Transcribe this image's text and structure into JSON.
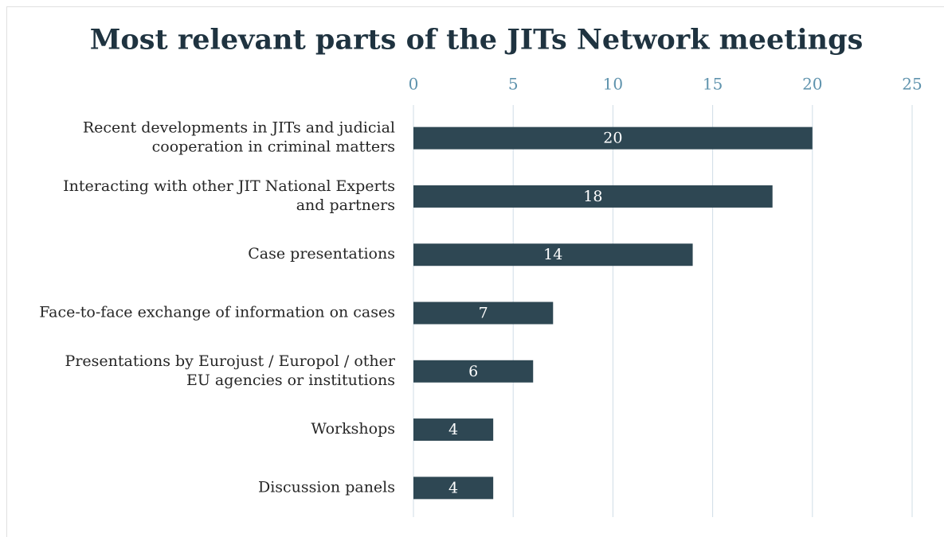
{
  "chart_data": {
    "type": "barh",
    "title": "Most relevant parts of the JITs Network meetings",
    "categories": [
      [
        "Recent developments in JITs and judicial",
        "cooperation in criminal matters"
      ],
      [
        "Interacting with other JIT National Experts",
        "and partners"
      ],
      [
        "Case presentations"
      ],
      [
        "Face-to-face exchange of information on cases"
      ],
      [
        "Presentations by Eurojust / Europol / other",
        "EU agencies or institutions"
      ],
      [
        "Workshops"
      ],
      [
        "Discussion panels"
      ]
    ],
    "values": [
      20,
      18,
      14,
      7,
      6,
      4,
      4
    ],
    "color": "#2e4753",
    "xlim": [
      0,
      25
    ],
    "xticks": [
      0,
      5,
      10,
      15,
      20,
      25
    ],
    "grid": true
  }
}
